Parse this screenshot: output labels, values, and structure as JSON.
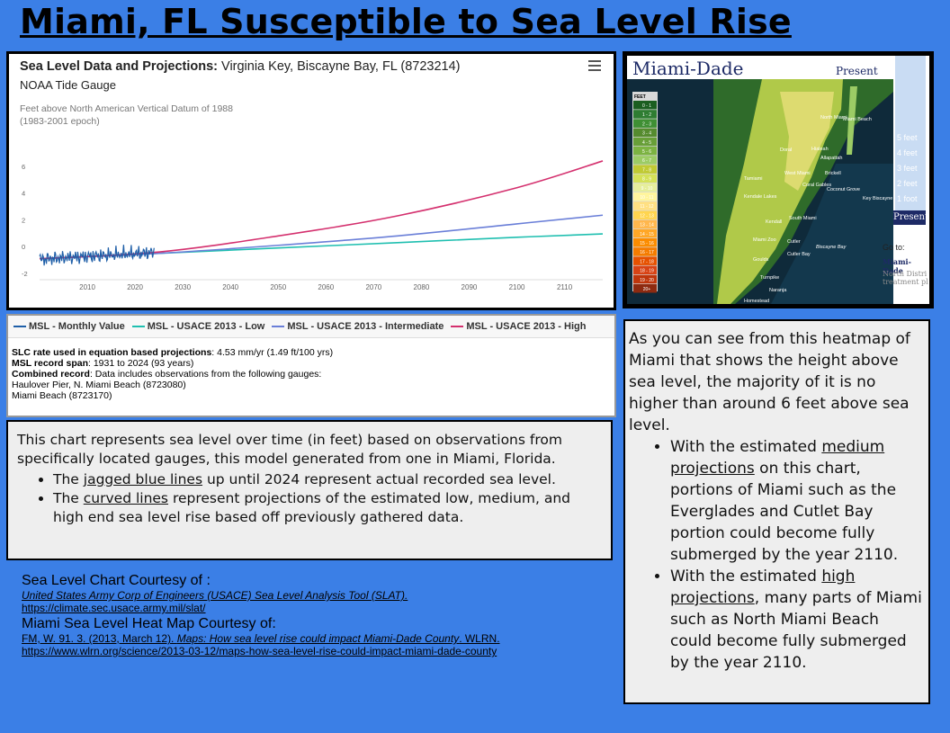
{
  "title": "Miami, FL Susceptible to Sea Level Rise",
  "chart": {
    "heading_bold": "Sea Level Data and Projections:",
    "heading_rest": " Virginia Key, Biscayne Bay, FL (8723214)",
    "subheading": "NOAA Tide Gauge",
    "ylabel_line1": "Feet above North American Vertical Datum of 1988",
    "ylabel_line2": "(1983-2001 epoch)",
    "menu_icon": "hamburger-menu-icon"
  },
  "chart_data": {
    "type": "line",
    "title": "Sea Level Data and Projections: Virginia Key, Biscayne Bay, FL (8723214)",
    "xlabel": "",
    "ylabel": "Feet above North American Vertical Datum of 1988 (1983-2001 epoch)",
    "xlim": [
      2000,
      2118
    ],
    "ylim": [
      -2.2,
      7
    ],
    "x_ticks": [
      "2010",
      "2020",
      "2030",
      "2040",
      "2050",
      "2060",
      "2070",
      "2080",
      "2090",
      "2100",
      "2110"
    ],
    "y_ticks": [
      "-2",
      "0",
      "2",
      "4",
      "6"
    ],
    "series": [
      {
        "name": "MSL - Monthly Value",
        "color": "#1f5fa8",
        "range": [
          2000,
          2024
        ],
        "approx_values": [
          [
            2000,
            -1.0
          ],
          [
            2024,
            -0.5
          ]
        ]
      },
      {
        "name": "MSL - USACE 2013 - Low",
        "color": "#1fbfb0",
        "x": [
          2000,
          2025,
          2050,
          2075,
          2100,
          2118
        ],
        "values": [
          -0.9,
          -0.5,
          -0.1,
          0.3,
          0.7,
          0.95
        ]
      },
      {
        "name": "MSL - USACE 2013 - Intermediate",
        "color": "#6a7fd8",
        "x": [
          2000,
          2025,
          2050,
          2075,
          2100,
          2118
        ],
        "values": [
          -0.9,
          -0.5,
          0.1,
          0.8,
          1.7,
          2.35
        ]
      },
      {
        "name": "MSL - USACE 2013 - High",
        "color": "#d4306e",
        "x": [
          2000,
          2025,
          2050,
          2075,
          2100,
          2118
        ],
        "values": [
          -0.9,
          -0.4,
          0.8,
          2.3,
          4.4,
          6.4
        ]
      }
    ]
  },
  "legend": {
    "items": [
      {
        "label": "MSL - Monthly Value",
        "color": "#1f5fa8"
      },
      {
        "label": "MSL - USACE 2013 - Low",
        "color": "#1fbfb0"
      },
      {
        "label": "MSL - USACE 2013 - Intermediate",
        "color": "#6a7fd8"
      },
      {
        "label": "MSL - USACE 2013 - High",
        "color": "#d4306e"
      }
    ],
    "slc_label": "SLC rate used in equation based projections",
    "slc_value": ": 4.53 mm/yr (1.49 ft/100 yrs)",
    "span_label": "MSL record span",
    "span_value": ": 1931 to 2024 (93 years)",
    "combined_label": "Combined record",
    "combined_value": ": Data includes observations from the following gauges:",
    "gauge1": "Haulover Pier, N. Miami Beach (8723080)",
    "gauge2": "Miami Beach (8723170)"
  },
  "explain": {
    "intro": "This chart represents sea level over time (in feet) based on observations from specifically located gauges, this model generated from one in Miami, Florida.",
    "b1_pre": "The ",
    "b1_u": "jagged blue lines",
    "b1_post": " up until 2024 represent actual recorded sea level.",
    "b2_pre": "The ",
    "b2_u": "curved lines",
    "b2_post": " represent projections of the estimated low, medium, and high end sea level rise based off previously gathered data."
  },
  "credits": {
    "chart_head": "Sea Level Chart Courtesy of :",
    "chart_src": "United States Army Corp of Engineers (USACE) Sea Level Analysis Tool (SLAT).",
    "chart_url": "https://climate.sec.usace.army.mil/slat/",
    "map_head": "Miami Sea Level Heat Map Courtesy of:",
    "map_src_pre": "FM, W. 91. 3. (2013, March 12). ",
    "map_src_title": "Maps: How sea level rise could impact Miami-Dade County",
    "map_src_post": ". WLRN.",
    "map_url": "https://www.wlrn.org/science/2013-03-12/maps-how-sea-level-rise-could-impact-miami-dade-county"
  },
  "map": {
    "title": "Miami-Dade",
    "present": "Present",
    "legend_header": "FEET",
    "legend": [
      "0 - 1",
      "1 - 2",
      "2 - 3",
      "3 - 4",
      "4 - 5",
      "5 - 6",
      "6 - 7",
      "7 - 8",
      "8 - 9",
      "9 - 10",
      "10 - 11",
      "11 - 12",
      "12 - 13",
      "13 - 14",
      "14 - 15",
      "15 - 16",
      "16 - 17",
      "17 - 18",
      "18 - 19",
      "19 - 20",
      "20+"
    ],
    "legend_colors": [
      "#1b5e20",
      "#2e7d32",
      "#3f8f34",
      "#558b2f",
      "#689f38",
      "#7cb342",
      "#9ccc65",
      "#c0ca33",
      "#d4e157",
      "#e6ee9c",
      "#fff59d",
      "#ffe082",
      "#ffd54f",
      "#ffb74d",
      "#ffa726",
      "#fb8c00",
      "#f57c00",
      "#e65100",
      "#d84315",
      "#bf360c",
      "#8d2a10"
    ],
    "side_labels": [
      "5 feet",
      "4 feet",
      "3 feet",
      "2 feet",
      "1 foot"
    ],
    "side_present": "Present",
    "goto": "Go to:",
    "goto_md": "Miami-Dade",
    "goto_nd": "North Distri treatment pl",
    "places": [
      {
        "name": "North Miami"
      },
      {
        "name": "Miami Beach"
      },
      {
        "name": "Doral"
      },
      {
        "name": "Hialeah"
      },
      {
        "name": "Allapattah"
      },
      {
        "name": "West Miami"
      },
      {
        "name": "Brickell"
      },
      {
        "name": "Tamiami"
      },
      {
        "name": "Coral Gables"
      },
      {
        "name": "Coconut Grove"
      },
      {
        "name": "Kendale Lakes"
      },
      {
        "name": "Key Biscayne"
      },
      {
        "name": "Kendall"
      },
      {
        "name": "South Miami"
      },
      {
        "name": "Cutler"
      },
      {
        "name": "Miami Zoo"
      },
      {
        "name": "Cutler Bay"
      },
      {
        "name": "Biscayne Bay"
      },
      {
        "name": "Goulds"
      },
      {
        "name": "Turnpike"
      },
      {
        "name": "Naranja"
      },
      {
        "name": "Homestead"
      }
    ]
  },
  "right": {
    "intro": "As you can see from this heatmap of Miami that shows the height above sea level, the majority of it is no higher than around 6 feet above sea level.",
    "b1_pre": "With the estimated ",
    "b1_u": "medium projections",
    "b1_post": " on this chart, portions of Miami such as the Everglades and Cutlet Bay portion could become fully submerged by the year 2110.",
    "b2_pre": "With the estimated ",
    "b2_u": "high projections",
    "b2_post": ", many parts of Miami such as North Miami Beach could become fully submerged by the year 2110."
  }
}
